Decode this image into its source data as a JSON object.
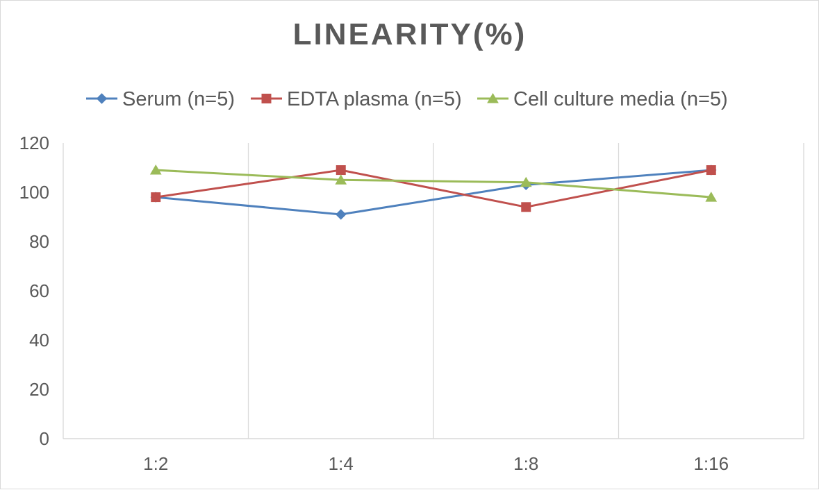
{
  "chart_data": {
    "type": "line",
    "title": "LINEARITY(%)",
    "xlabel": "",
    "ylabel": "",
    "categories": [
      "1:2",
      "1:4",
      "1:8",
      "1:16"
    ],
    "ylim": [
      0,
      120
    ],
    "yticks": [
      0,
      20,
      40,
      60,
      80,
      100,
      120
    ],
    "grid": "vertical",
    "legend_position": "top",
    "series": [
      {
        "name": "Serum (n=5)",
        "values": [
          98,
          91,
          103,
          109
        ],
        "color": "#4f81bd",
        "marker": "diamond"
      },
      {
        "name": "EDTA plasma (n=5)",
        "values": [
          98,
          109,
          94,
          109
        ],
        "color": "#c0504d",
        "marker": "square"
      },
      {
        "name": "Cell culture media (n=5)",
        "values": [
          109,
          105,
          104,
          98
        ],
        "color": "#9bbb59",
        "marker": "triangle"
      }
    ]
  }
}
